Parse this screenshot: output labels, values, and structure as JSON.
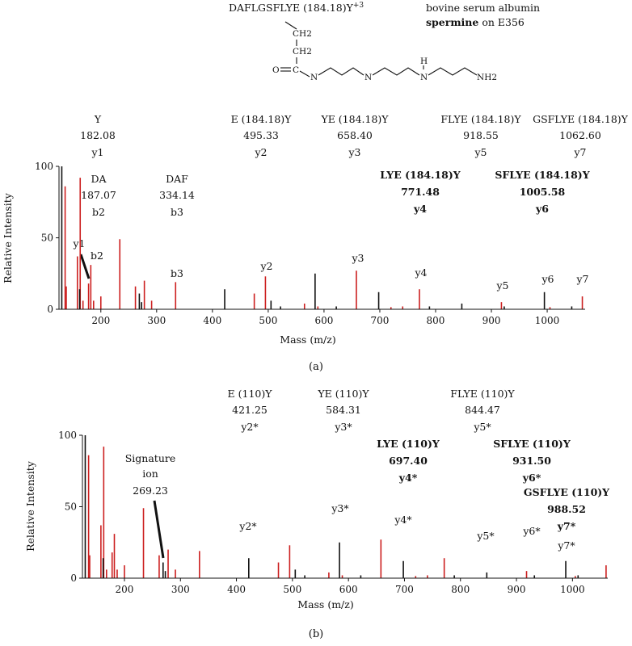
{
  "header": {
    "peptide": "DAFLGSFLYE (184.18)Y",
    "charge": "+3",
    "protein": "bovine serum albumin",
    "modifier_bold": "spermine",
    "modifier_rest": " on E356",
    "molecule_atoms": [
      "CH2",
      "CH2",
      "O",
      "C",
      "N",
      "N",
      "H",
      "N",
      "NH2"
    ]
  },
  "chart_data": [
    {
      "type": "bar",
      "panel": "(a)",
      "xlabel": "Mass (m/z)",
      "ylabel": "Relative Intensity",
      "xlim": [
        125,
        1068
      ],
      "ylim": [
        0,
        100
      ],
      "xticks": [
        200,
        300,
        400,
        500,
        600,
        700,
        800,
        900,
        1000
      ],
      "yticks": [
        0,
        50,
        100
      ],
      "series": [
        {
          "color": "#cc1f1f",
          "x": [
            136,
            138,
            158,
            163,
            168,
            178,
            182,
            187,
            200,
            234,
            262,
            278,
            291,
            334,
            475,
            495,
            565,
            589,
            658,
            720,
            741,
            771,
            918,
            1005,
            1063
          ],
          "values": [
            86,
            16,
            37,
            92,
            6,
            18,
            31,
            6,
            9,
            49,
            16,
            20,
            6,
            19,
            11,
            23,
            4,
            2,
            27,
            1.5,
            2,
            14,
            5,
            1.5,
            9
          ]
        },
        {
          "color": "#111111",
          "x": [
            130,
            162,
            269,
            273,
            422,
            505,
            522,
            584,
            622,
            698,
            789,
            847,
            923,
            995,
            1044
          ],
          "values": [
            100,
            14,
            11,
            5,
            14,
            6,
            2,
            25,
            2,
            12,
            2,
            4,
            2,
            12,
            2
          ]
        }
      ],
      "annotations": [
        {
          "lines": [
            "Y",
            "182.08",
            "y1"
          ],
          "bold": false
        },
        {
          "lines": [
            "E (184.18)Y",
            "495.33",
            "y2"
          ],
          "bold": false
        },
        {
          "lines": [
            "YE (184.18)Y",
            "658.40",
            "y3"
          ],
          "bold": false
        },
        {
          "lines": [
            "FLYE (184.18)Y",
            "918.55",
            "y5"
          ],
          "bold": false
        },
        {
          "lines": [
            "GSFLYE (184.18)Y",
            "1062.60",
            "y7"
          ],
          "bold": false
        },
        {
          "lines": [
            "DA",
            "187.07",
            "b2"
          ],
          "bold": false
        },
        {
          "lines": [
            "DAF",
            "334.14",
            "b3"
          ],
          "bold": false
        },
        {
          "lines": [
            "LYE (184.18)Y",
            "771.48",
            "y4"
          ],
          "bold": true
        },
        {
          "lines": [
            "SFLYE (184.18)Y",
            "1005.58",
            "y6"
          ],
          "bold": true
        }
      ],
      "peak_labels": [
        "y1",
        "b2",
        "b3",
        "y2",
        "y3",
        "y4",
        "y5",
        "y6",
        "y7"
      ]
    },
    {
      "type": "bar",
      "panel": "(b)",
      "xlabel": "Mass (m/z)",
      "ylabel": "Relative Intensity",
      "xlim": [
        125,
        1063
      ],
      "ylim": [
        0,
        100
      ],
      "xticks": [
        200,
        300,
        400,
        500,
        600,
        700,
        800,
        900,
        1000
      ],
      "yticks": [
        0,
        50,
        100
      ],
      "series": [
        {
          "color": "#cc1f1f",
          "x": [
            136,
            138,
            158,
            163,
            168,
            178,
            182,
            187,
            200,
            234,
            262,
            278,
            291,
            334,
            475,
            495,
            565,
            589,
            658,
            720,
            741,
            771,
            918,
            1005,
            1060
          ],
          "values": [
            86,
            16,
            37,
            92,
            6,
            18,
            31,
            6,
            9,
            49,
            16,
            20,
            6,
            19,
            11,
            23,
            4,
            2,
            27,
            1.5,
            2,
            14,
            5,
            1.5,
            9
          ]
        },
        {
          "color": "#111111",
          "x": [
            130,
            162,
            269,
            273,
            422,
            505,
            522,
            584,
            622,
            698,
            789,
            847,
            932,
            988,
            1010
          ],
          "values": [
            100,
            14,
            11,
            5,
            14,
            6,
            2,
            25,
            2,
            12,
            2,
            4,
            2,
            12,
            2
          ]
        }
      ],
      "annotations": [
        {
          "lines": [
            "E (110)Y",
            "421.25",
            "y2*"
          ],
          "bold": false
        },
        {
          "lines": [
            "YE (110)Y",
            "584.31",
            "y3*"
          ],
          "bold": false
        },
        {
          "lines": [
            "FLYE (110)Y",
            "844.47",
            "y5*"
          ],
          "bold": false
        },
        {
          "lines": [
            "LYE (110)Y",
            "697.40",
            "y4*"
          ],
          "bold": true
        },
        {
          "lines": [
            "SFLYE (110)Y",
            "931.50",
            "y6*"
          ],
          "bold": true
        },
        {
          "lines": [
            "GSFLYE (110)Y",
            "988.52",
            "y7*"
          ],
          "bold": true
        },
        {
          "lines": [
            "Signature",
            "ion",
            "269.23"
          ],
          "bold": false
        }
      ],
      "peak_labels": [
        "y2*",
        "y3*",
        "y4*",
        "y5*",
        "y6*",
        "y7*"
      ]
    }
  ]
}
